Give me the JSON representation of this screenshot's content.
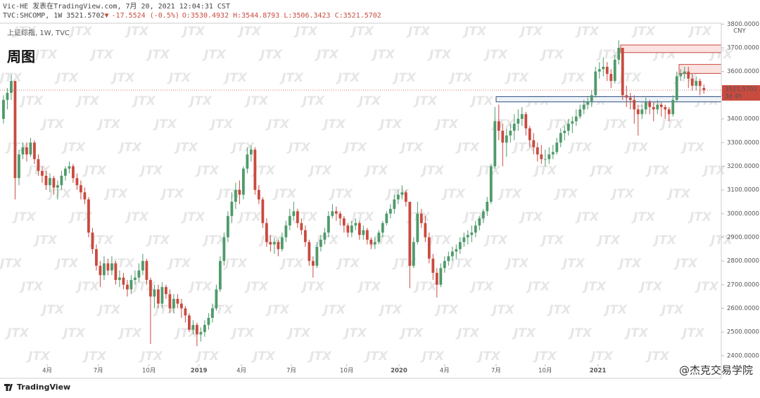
{
  "header": {
    "publisher": "Vic-HE 发表在TradingView.com, 7月 20, 2021 12:04:31 CST",
    "quote": "TVC:SHCOMP, 1W 3521.5702",
    "arrow": "▼",
    "change": "-17.5524 (-0.5%)",
    "ohlc": "O:3530.4932 H:3544.8793 L:3506.3423 C:3521.5702"
  },
  "footer": {
    "logo": "TradingView",
    "credit": "@杰克交易学院"
  },
  "chart_data": {
    "type": "candlestick",
    "legend": "上证综指, 1W, TVC",
    "label": "周图",
    "currency": "CNY",
    "countdown": "3d 4h",
    "watermark": "JTX",
    "up_color": "#4f9a6b",
    "down_color": "#c94a3f",
    "xlim": [
      -0.9,
      185.5
    ],
    "ylim": [
      2364,
      3804
    ],
    "yticks": [
      {
        "value": 2400,
        "label": "2400.0000"
      },
      {
        "value": 2500,
        "label": "2500.0000"
      },
      {
        "value": 2600,
        "label": "2600.0000"
      },
      {
        "value": 2700,
        "label": "2700.0000"
      },
      {
        "value": 2800,
        "label": "2800.0000"
      },
      {
        "value": 2900,
        "label": "2900.0000"
      },
      {
        "value": 3000,
        "label": "3000.0000"
      },
      {
        "value": 3100,
        "label": "3100.0000"
      },
      {
        "value": 3200,
        "label": "3200.0000"
      },
      {
        "value": 3300,
        "label": "3300.0000"
      },
      {
        "value": 3400,
        "label": "3400.0000"
      },
      {
        "value": 3500,
        "label": "3500.0000"
      },
      {
        "value": 3600,
        "label": "3600.0000"
      },
      {
        "value": 3700,
        "label": "3700.0000"
      },
      {
        "value": 3800,
        "label": "3800.0000"
      }
    ],
    "xticks": [
      {
        "value": 11.3,
        "label": "4月"
      },
      {
        "value": 24.5,
        "label": "7月"
      },
      {
        "value": 37.6,
        "label": "10月"
      },
      {
        "value": 50.5,
        "label": "2019"
      },
      {
        "value": 61.5,
        "label": "4月"
      },
      {
        "value": 74.4,
        "label": "7月"
      },
      {
        "value": 88.7,
        "label": "10月"
      },
      {
        "value": 102.2,
        "label": "2020"
      },
      {
        "value": 114,
        "label": "4月"
      },
      {
        "value": 127.3,
        "label": "7月"
      },
      {
        "value": 140,
        "label": "10月"
      },
      {
        "value": 153.6,
        "label": "2021"
      }
    ],
    "zones": [
      {
        "low": 3680,
        "high": 3712,
        "color": "#fbe3e1",
        "border": "#c94a3f"
      },
      {
        "low": 3592,
        "high": 3630,
        "color": "#fbe3e1",
        "border": "#c94a3f"
      },
      {
        "low": 3472,
        "high": 3494,
        "color": "#eef3fa",
        "border": "#2a4d7a"
      }
    ],
    "ohlc": [
      [
        3400,
        3500,
        3380,
        3480
      ],
      [
        3480,
        3530,
        3440,
        3510
      ],
      [
        3510,
        3587,
        3480,
        3560
      ],
      [
        3560,
        3560,
        3060,
        3150
      ],
      [
        3150,
        3270,
        3120,
        3250
      ],
      [
        3250,
        3300,
        3230,
        3280
      ],
      [
        3280,
        3300,
        3220,
        3250
      ],
      [
        3250,
        3320,
        3240,
        3300
      ],
      [
        3300,
        3310,
        3210,
        3230
      ],
      [
        3230,
        3250,
        3160,
        3180
      ],
      [
        3180,
        3200,
        3130,
        3160
      ],
      [
        3160,
        3180,
        3100,
        3120
      ],
      [
        3120,
        3170,
        3090,
        3150
      ],
      [
        3150,
        3160,
        3080,
        3110
      ],
      [
        3110,
        3140,
        3060,
        3120
      ],
      [
        3120,
        3180,
        3100,
        3160
      ],
      [
        3160,
        3200,
        3140,
        3190
      ],
      [
        3190,
        3220,
        3170,
        3200
      ],
      [
        3200,
        3210,
        3130,
        3150
      ],
      [
        3150,
        3170,
        3100,
        3120
      ],
      [
        3120,
        3140,
        3060,
        3090
      ],
      [
        3090,
        3110,
        3040,
        3060
      ],
      [
        3060,
        3070,
        2900,
        2920
      ],
      [
        2920,
        2940,
        2830,
        2850
      ],
      [
        2850,
        2870,
        2760,
        2780
      ],
      [
        2780,
        2800,
        2690,
        2740
      ],
      [
        2740,
        2820,
        2720,
        2790
      ],
      [
        2790,
        2810,
        2740,
        2760
      ],
      [
        2760,
        2820,
        2740,
        2790
      ],
      [
        2790,
        2800,
        2700,
        2720
      ],
      [
        2720,
        2760,
        2690,
        2730
      ],
      [
        2730,
        2750,
        2680,
        2700
      ],
      [
        2700,
        2720,
        2650,
        2680
      ],
      [
        2680,
        2740,
        2660,
        2720
      ],
      [
        2720,
        2760,
        2700,
        2730
      ],
      [
        2730,
        2790,
        2710,
        2760
      ],
      [
        2760,
        2830,
        2740,
        2800
      ],
      [
        2800,
        2810,
        2700,
        2720
      ],
      [
        2720,
        2730,
        2450,
        2650
      ],
      [
        2650,
        2700,
        2600,
        2680
      ],
      [
        2680,
        2700,
        2600,
        2620
      ],
      [
        2620,
        2710,
        2600,
        2690
      ],
      [
        2690,
        2700,
        2640,
        2660
      ],
      [
        2660,
        2680,
        2580,
        2600
      ],
      [
        2600,
        2660,
        2580,
        2640
      ],
      [
        2640,
        2660,
        2600,
        2620
      ],
      [
        2620,
        2640,
        2560,
        2600
      ],
      [
        2600,
        2610,
        2540,
        2570
      ],
      [
        2570,
        2580,
        2500,
        2510
      ],
      [
        2510,
        2550,
        2490,
        2530
      ],
      [
        2530,
        2540,
        2440,
        2490
      ],
      [
        2490,
        2520,
        2460,
        2500
      ],
      [
        2500,
        2550,
        2480,
        2530
      ],
      [
        2530,
        2580,
        2510,
        2560
      ],
      [
        2560,
        2620,
        2540,
        2600
      ],
      [
        2600,
        2700,
        2590,
        2680
      ],
      [
        2680,
        2820,
        2670,
        2800
      ],
      [
        2800,
        2920,
        2780,
        2900
      ],
      [
        2900,
        3010,
        2880,
        2990
      ],
      [
        2990,
        3090,
        2960,
        3050
      ],
      [
        3050,
        3130,
        3020,
        3100
      ],
      [
        3100,
        3140,
        3040,
        3080
      ],
      [
        3080,
        3200,
        3060,
        3190
      ],
      [
        3190,
        3280,
        3170,
        3250
      ],
      [
        3250,
        3288,
        3220,
        3270
      ],
      [
        3270,
        3280,
        3080,
        3100
      ],
      [
        3100,
        3120,
        3040,
        3060
      ],
      [
        3060,
        3070,
        2940,
        2960
      ],
      [
        2960,
        2980,
        2860,
        2880
      ],
      [
        2880,
        2910,
        2840,
        2870
      ],
      [
        2870,
        2900,
        2830,
        2880
      ],
      [
        2880,
        2890,
        2820,
        2850
      ],
      [
        2850,
        2920,
        2840,
        2900
      ],
      [
        2900,
        2970,
        2880,
        2950
      ],
      [
        2950,
        3020,
        2930,
        2990
      ],
      [
        2990,
        3050,
        2970,
        3010
      ],
      [
        3010,
        3020,
        2940,
        2960
      ],
      [
        2960,
        2980,
        2910,
        2930
      ],
      [
        2930,
        2950,
        2860,
        2880
      ],
      [
        2880,
        2890,
        2780,
        2800
      ],
      [
        2800,
        2820,
        2730,
        2780
      ],
      [
        2780,
        2880,
        2770,
        2860
      ],
      [
        2860,
        2910,
        2840,
        2890
      ],
      [
        2890,
        2940,
        2870,
        2920
      ],
      [
        2920,
        3010,
        2900,
        2990
      ],
      [
        2990,
        3040,
        2980,
        3010
      ],
      [
        3010,
        3030,
        2970,
        3000
      ],
      [
        3000,
        3010,
        2950,
        2980
      ],
      [
        2980,
        2990,
        2920,
        2950
      ],
      [
        2950,
        2960,
        2900,
        2920
      ],
      [
        2920,
        2970,
        2900,
        2950
      ],
      [
        2950,
        2980,
        2930,
        2960
      ],
      [
        2960,
        2970,
        2890,
        2910
      ],
      [
        2910,
        2950,
        2890,
        2930
      ],
      [
        2930,
        2940,
        2870,
        2890
      ],
      [
        2890,
        2900,
        2850,
        2870
      ],
      [
        2870,
        2900,
        2850,
        2880
      ],
      [
        2880,
        2930,
        2870,
        2920
      ],
      [
        2920,
        2970,
        2900,
        2960
      ],
      [
        2960,
        3010,
        2950,
        3000
      ],
      [
        3000,
        3040,
        2980,
        3020
      ],
      [
        3020,
        3080,
        3000,
        3060
      ],
      [
        3060,
        3100,
        3040,
        3080
      ],
      [
        3080,
        3120,
        3060,
        3090
      ],
      [
        3090,
        3100,
        3030,
        3050
      ],
      [
        3050,
        3050,
        2685,
        2780
      ],
      [
        2780,
        2900,
        2770,
        2880
      ],
      [
        2880,
        3050,
        2870,
        3000
      ],
      [
        3000,
        3020,
        2940,
        2960
      ],
      [
        2960,
        2990,
        2880,
        2900
      ],
      [
        2900,
        2920,
        2790,
        2810
      ],
      [
        2810,
        2830,
        2720,
        2750
      ],
      [
        2750,
        2770,
        2646,
        2700
      ],
      [
        2700,
        2790,
        2690,
        2770
      ],
      [
        2770,
        2820,
        2750,
        2800
      ],
      [
        2800,
        2840,
        2780,
        2820
      ],
      [
        2820,
        2860,
        2800,
        2840
      ],
      [
        2840,
        2870,
        2810,
        2850
      ],
      [
        2850,
        2900,
        2830,
        2880
      ],
      [
        2880,
        2920,
        2860,
        2900
      ],
      [
        2900,
        2930,
        2870,
        2910
      ],
      [
        2910,
        2950,
        2880,
        2920
      ],
      [
        2920,
        2970,
        2900,
        2950
      ],
      [
        2950,
        2990,
        2930,
        2980
      ],
      [
        2980,
        3020,
        2960,
        3010
      ],
      [
        3010,
        3070,
        2990,
        3050
      ],
      [
        3050,
        3210,
        3040,
        3200
      ],
      [
        3200,
        3450,
        3190,
        3390
      ],
      [
        3390,
        3460,
        3310,
        3350
      ],
      [
        3350,
        3380,
        3200,
        3300
      ],
      [
        3300,
        3360,
        3240,
        3330
      ],
      [
        3330,
        3380,
        3300,
        3350
      ],
      [
        3350,
        3420,
        3310,
        3380
      ],
      [
        3380,
        3440,
        3350,
        3400
      ],
      [
        3400,
        3450,
        3370,
        3420
      ],
      [
        3420,
        3430,
        3330,
        3360
      ],
      [
        3360,
        3370,
        3280,
        3310
      ],
      [
        3310,
        3340,
        3250,
        3280
      ],
      [
        3280,
        3300,
        3220,
        3250
      ],
      [
        3250,
        3290,
        3210,
        3230
      ],
      [
        3230,
        3270,
        3200,
        3230
      ],
      [
        3230,
        3280,
        3210,
        3250
      ],
      [
        3250,
        3290,
        3230,
        3260
      ],
      [
        3260,
        3320,
        3250,
        3300
      ],
      [
        3300,
        3360,
        3280,
        3340
      ],
      [
        3340,
        3370,
        3310,
        3350
      ],
      [
        3350,
        3400,
        3330,
        3380
      ],
      [
        3380,
        3410,
        3340,
        3390
      ],
      [
        3390,
        3440,
        3370,
        3410
      ],
      [
        3410,
        3460,
        3400,
        3440
      ],
      [
        3440,
        3480,
        3420,
        3460
      ],
      [
        3460,
        3490,
        3440,
        3470
      ],
      [
        3470,
        3520,
        3450,
        3500
      ],
      [
        3500,
        3620,
        3490,
        3600
      ],
      [
        3600,
        3640,
        3570,
        3610
      ],
      [
        3610,
        3660,
        3580,
        3620
      ],
      [
        3620,
        3640,
        3560,
        3590
      ],
      [
        3590,
        3610,
        3530,
        3560
      ],
      [
        3560,
        3670,
        3550,
        3650
      ],
      [
        3650,
        3732,
        3630,
        3700
      ],
      [
        3700,
        3700,
        3480,
        3500
      ],
      [
        3500,
        3540,
        3450,
        3490
      ],
      [
        3490,
        3510,
        3440,
        3480
      ],
      [
        3480,
        3500,
        3380,
        3440
      ],
      [
        3440,
        3460,
        3330,
        3420
      ],
      [
        3420,
        3460,
        3400,
        3440
      ],
      [
        3440,
        3490,
        3420,
        3470
      ],
      [
        3470,
        3480,
        3420,
        3450
      ],
      [
        3450,
        3470,
        3390,
        3440
      ],
      [
        3440,
        3480,
        3420,
        3460
      ],
      [
        3460,
        3470,
        3410,
        3450
      ],
      [
        3450,
        3460,
        3400,
        3440
      ],
      [
        3440,
        3450,
        3390,
        3420
      ],
      [
        3420,
        3500,
        3410,
        3480
      ],
      [
        3480,
        3600,
        3470,
        3580
      ],
      [
        3580,
        3610,
        3560,
        3590
      ],
      [
        3590,
        3620,
        3570,
        3600
      ],
      [
        3600,
        3620,
        3530,
        3570
      ],
      [
        3570,
        3590,
        3520,
        3540
      ],
      [
        3540,
        3580,
        3520,
        3560
      ],
      [
        3560,
        3570,
        3500,
        3539.1226
      ],
      [
        3530.4932,
        3544.8793,
        3506.3423,
        3521.5702
      ]
    ]
  }
}
